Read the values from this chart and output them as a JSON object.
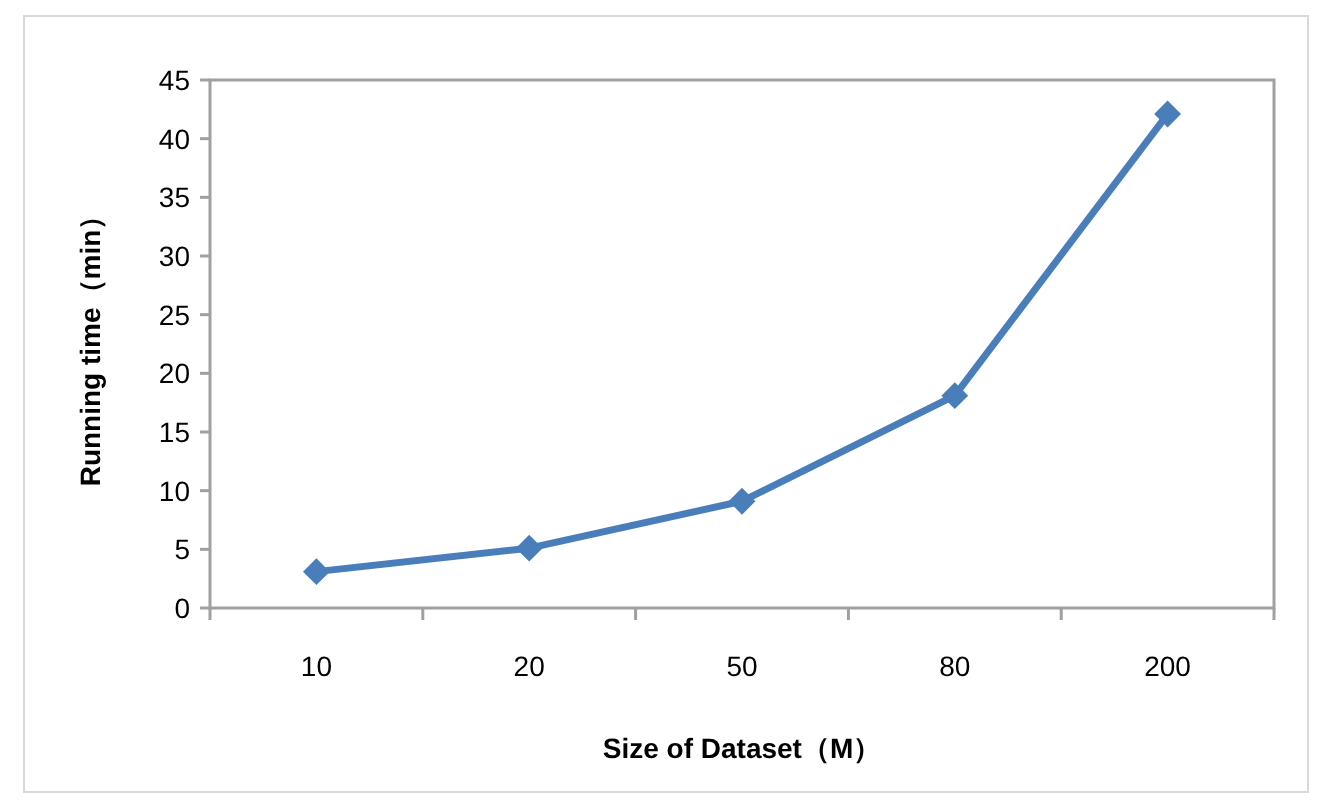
{
  "chart_data": {
    "type": "line",
    "xlabel": "Size of Dataset（M）",
    "ylabel": "Running time（min）",
    "categories": [
      "10",
      "20",
      "50",
      "80",
      "200"
    ],
    "values": [
      3.1,
      5.1,
      9.1,
      18.1,
      42.1
    ],
    "color": "#4a7ebb",
    "marker": "diamond",
    "ylim": [
      0,
      45
    ],
    "yticks": [
      0,
      5,
      10,
      15,
      20,
      25,
      30,
      35,
      40,
      45
    ]
  }
}
